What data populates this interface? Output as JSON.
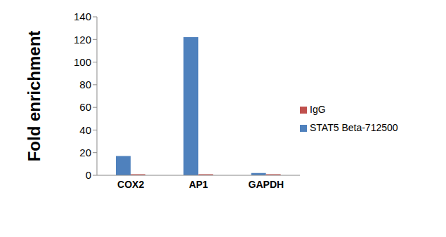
{
  "chart_data": {
    "type": "bar",
    "y_label": "Fold enrichment",
    "categories": [
      "COX2",
      "AP1",
      "GAPDH"
    ],
    "series": [
      {
        "name": "STAT5 Beta-712500",
        "color": "#4f81bd",
        "values": [
          17,
          122,
          2
        ]
      },
      {
        "name": "IgG",
        "color": "#c0504d",
        "values": [
          1,
          1,
          1
        ]
      }
    ],
    "ylim": [
      0,
      140
    ],
    "yticks": [
      0,
      20,
      40,
      60,
      80,
      100,
      120,
      140
    ],
    "grid": false,
    "legend": "right"
  }
}
